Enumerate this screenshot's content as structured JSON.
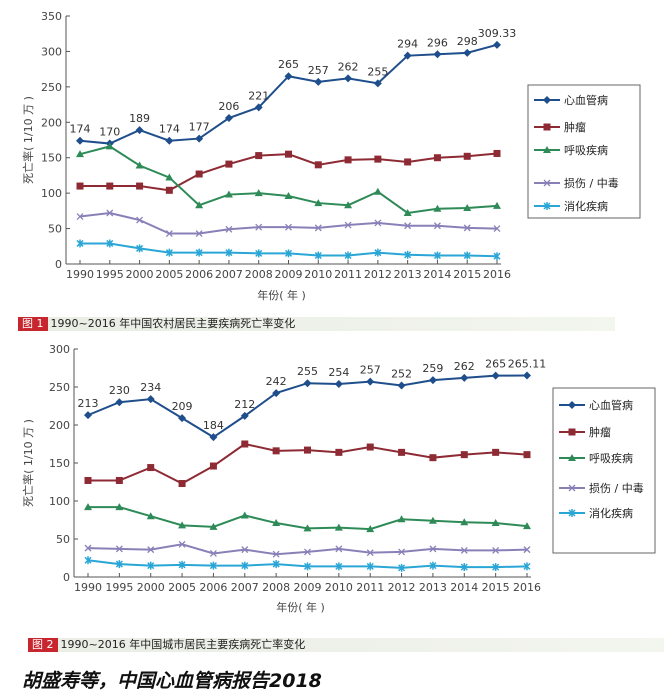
{
  "chart_data": [
    {
      "type": "line",
      "title": "1990~2016 年中国农村居民主要疾病死亡率变化",
      "figure_label": "图 1",
      "xlabel": "年份( 年 )",
      "ylabel": "死亡率( 1/10 万 )",
      "ylim": [
        0,
        350
      ],
      "yticks": [
        0,
        50,
        100,
        150,
        200,
        250,
        300,
        350
      ],
      "categories": [
        "1990",
        "1995",
        "2000",
        "2005",
        "2006",
        "2007",
        "2008",
        "2009",
        "2010",
        "2011",
        "2012",
        "2013",
        "2014",
        "2015",
        "2016"
      ],
      "legend": "right",
      "series": [
        {
          "name": "心血管病",
          "color": "#1f4e8c",
          "marker": "diamond",
          "values": [
            174,
            170,
            189,
            174,
            177,
            206,
            221,
            265,
            257,
            262,
            255,
            294,
            296,
            298,
            309.33
          ],
          "labels": [
            "174",
            "170",
            "189",
            "174",
            "177",
            "206",
            "221",
            "265",
            "257",
            "262",
            "255",
            "294",
            "296",
            "298",
            "309.33"
          ]
        },
        {
          "name": "肿瘤",
          "color": "#8e2a33",
          "marker": "square",
          "values": [
            110,
            110,
            110,
            104,
            127,
            141,
            153,
            155,
            140,
            147,
            148,
            144,
            150,
            152,
            156
          ]
        },
        {
          "name": "呼吸疾病",
          "color": "#2e8b57",
          "marker": "triangle",
          "values": [
            155,
            166,
            139,
            122,
            83,
            98,
            100,
            96,
            86,
            83,
            102,
            72,
            78,
            79,
            82
          ]
        },
        {
          "name": "损伤 / 中毒",
          "color": "#8a80b8",
          "marker": "x",
          "values": [
            67,
            72,
            62,
            43,
            43,
            49,
            52,
            52,
            51,
            55,
            58,
            54,
            54,
            51,
            50
          ]
        },
        {
          "name": "消化疾病",
          "color": "#2aa6d6",
          "marker": "star",
          "values": [
            29,
            29,
            22,
            16,
            16,
            16,
            15,
            15,
            12,
            12,
            16,
            13,
            12,
            12,
            11
          ]
        }
      ]
    },
    {
      "type": "line",
      "title": "1990~2016 年中国城市居民主要疾病死亡率变化",
      "figure_label": "图 2",
      "xlabel": "年份( 年 )",
      "ylabel": "死亡率( 1/10 万 )",
      "ylim": [
        0,
        300
      ],
      "yticks": [
        0,
        50,
        100,
        150,
        200,
        250,
        300
      ],
      "categories": [
        "1990",
        "1995",
        "2000",
        "2005",
        "2006",
        "2007",
        "2008",
        "2009",
        "2010",
        "2011",
        "2012",
        "2013",
        "2014",
        "2015",
        "2016"
      ],
      "legend": "right",
      "series": [
        {
          "name": "心血管病",
          "color": "#1f4e8c",
          "marker": "diamond",
          "values": [
            213,
            230,
            234,
            209,
            184,
            212,
            242,
            255,
            254,
            257,
            252,
            259,
            262,
            265,
            265.11
          ],
          "labels": [
            "213",
            "230",
            "234",
            "209",
            "184",
            "212",
            "242",
            "255",
            "254",
            "257",
            "252",
            "259",
            "262",
            "265",
            "265.11"
          ]
        },
        {
          "name": "肿瘤",
          "color": "#8e2a33",
          "marker": "square",
          "values": [
            127,
            127,
            144,
            123,
            146,
            175,
            166,
            167,
            164,
            171,
            164,
            157,
            161,
            164,
            161
          ]
        },
        {
          "name": "呼吸疾病",
          "color": "#2e8b57",
          "marker": "triangle",
          "values": [
            92,
            92,
            80,
            68,
            66,
            81,
            71,
            64,
            65,
            63,
            76,
            74,
            72,
            71,
            67
          ]
        },
        {
          "name": "损伤 / 中毒",
          "color": "#8a80b8",
          "marker": "x",
          "values": [
            38,
            37,
            36,
            43,
            31,
            36,
            30,
            33,
            37,
            32,
            33,
            37,
            35,
            35,
            36
          ]
        },
        {
          "name": "消化疾病",
          "color": "#2aa6d6",
          "marker": "star",
          "values": [
            22,
            17,
            15,
            16,
            15,
            15,
            17,
            14,
            14,
            14,
            12,
            15,
            13,
            13,
            14
          ]
        }
      ]
    }
  ],
  "footer": "胡盛寿等，中国心血管病报告2018"
}
